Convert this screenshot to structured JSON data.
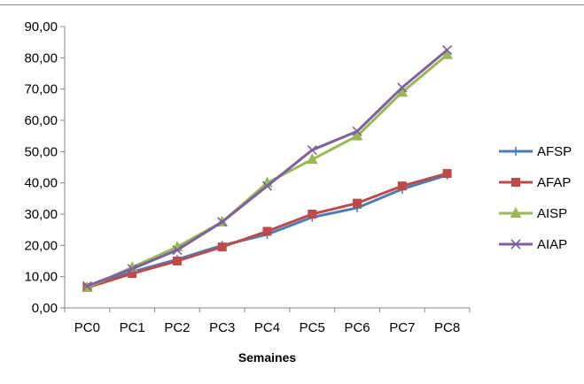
{
  "chart_data": {
    "type": "line",
    "title": "",
    "xlabel": "Semaines",
    "ylabel": "",
    "categories": [
      "PC0",
      "PC1",
      "PC2",
      "PC3",
      "PC4",
      "PC5",
      "PC6",
      "PC7",
      "PC8"
    ],
    "ylim": [
      0,
      90
    ],
    "yticks": [
      "0,00",
      "10,00",
      "20,00",
      "30,00",
      "40,00",
      "50,00",
      "60,00",
      "70,00",
      "80,00",
      "90,00"
    ],
    "grid": false,
    "legend_position": "right",
    "series": [
      {
        "name": "AFSP",
        "color": "#4a7ebb",
        "marker": "plus",
        "values": [
          6.5,
          11.5,
          15.5,
          20.0,
          23.5,
          29.0,
          32.0,
          38.0,
          42.5
        ]
      },
      {
        "name": "AFAP",
        "color": "#be4b48",
        "marker": "square",
        "values": [
          6.5,
          11.0,
          15.0,
          19.5,
          24.5,
          30.0,
          33.5,
          39.0,
          43.0
        ]
      },
      {
        "name": "AISP",
        "color": "#98b954",
        "marker": "triangle",
        "values": [
          6.5,
          13.0,
          19.5,
          27.5,
          40.0,
          47.5,
          55.0,
          69.0,
          81.0
        ]
      },
      {
        "name": "AIAP",
        "color": "#7d60a0",
        "marker": "x",
        "values": [
          7.0,
          12.5,
          18.5,
          27.5,
          39.0,
          50.5,
          56.5,
          70.5,
          82.5
        ]
      }
    ]
  }
}
